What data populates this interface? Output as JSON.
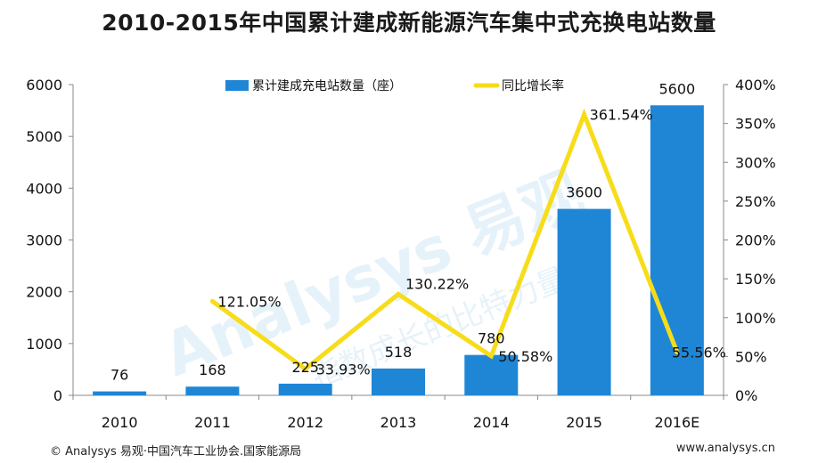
{
  "title": "2010-2015年中国累计建成新能源汽车集中式充换电站数量",
  "footer": {
    "source": "© Analysys 易观·中国汽车工业协会.国家能源局",
    "url": "www.analysys.cn"
  },
  "watermark": "Analysys 易观 指数成长的比特力量",
  "colors": {
    "bar": "#1f86d6",
    "line": "#f7dc1a",
    "axis": "#888888",
    "text": "#111111"
  },
  "chart_data": {
    "type": "bar",
    "categories": [
      "2010",
      "2011",
      "2012",
      "2013",
      "2014",
      "2015",
      "2016E"
    ],
    "series": [
      {
        "name": "累计建成充电站数量（座）",
        "type": "bar",
        "axis": "left",
        "values": [
          76,
          168,
          225,
          518,
          780,
          3600,
          5600
        ],
        "labels": [
          "76",
          "168",
          "225",
          "518",
          "780",
          "3600",
          "5600"
        ]
      },
      {
        "name": "同比增长率",
        "type": "line",
        "axis": "right",
        "values": [
          null,
          121.05,
          33.93,
          130.22,
          50.58,
          361.54,
          55.56
        ],
        "labels": [
          "",
          "121.05%",
          "33.93%",
          "130.22%",
          "50.58%",
          "361.54%",
          "55.56%"
        ]
      }
    ],
    "y_left": {
      "min": 0,
      "max": 6000,
      "ticks": [
        "0",
        "1000",
        "2000",
        "3000",
        "4000",
        "5000",
        "6000"
      ]
    },
    "y_right": {
      "min": 0,
      "max": 400,
      "ticks": [
        "0%",
        "50%",
        "100%",
        "150%",
        "200%",
        "250%",
        "300%",
        "350%",
        "400%"
      ]
    },
    "legend_position": "top",
    "grid": false
  }
}
